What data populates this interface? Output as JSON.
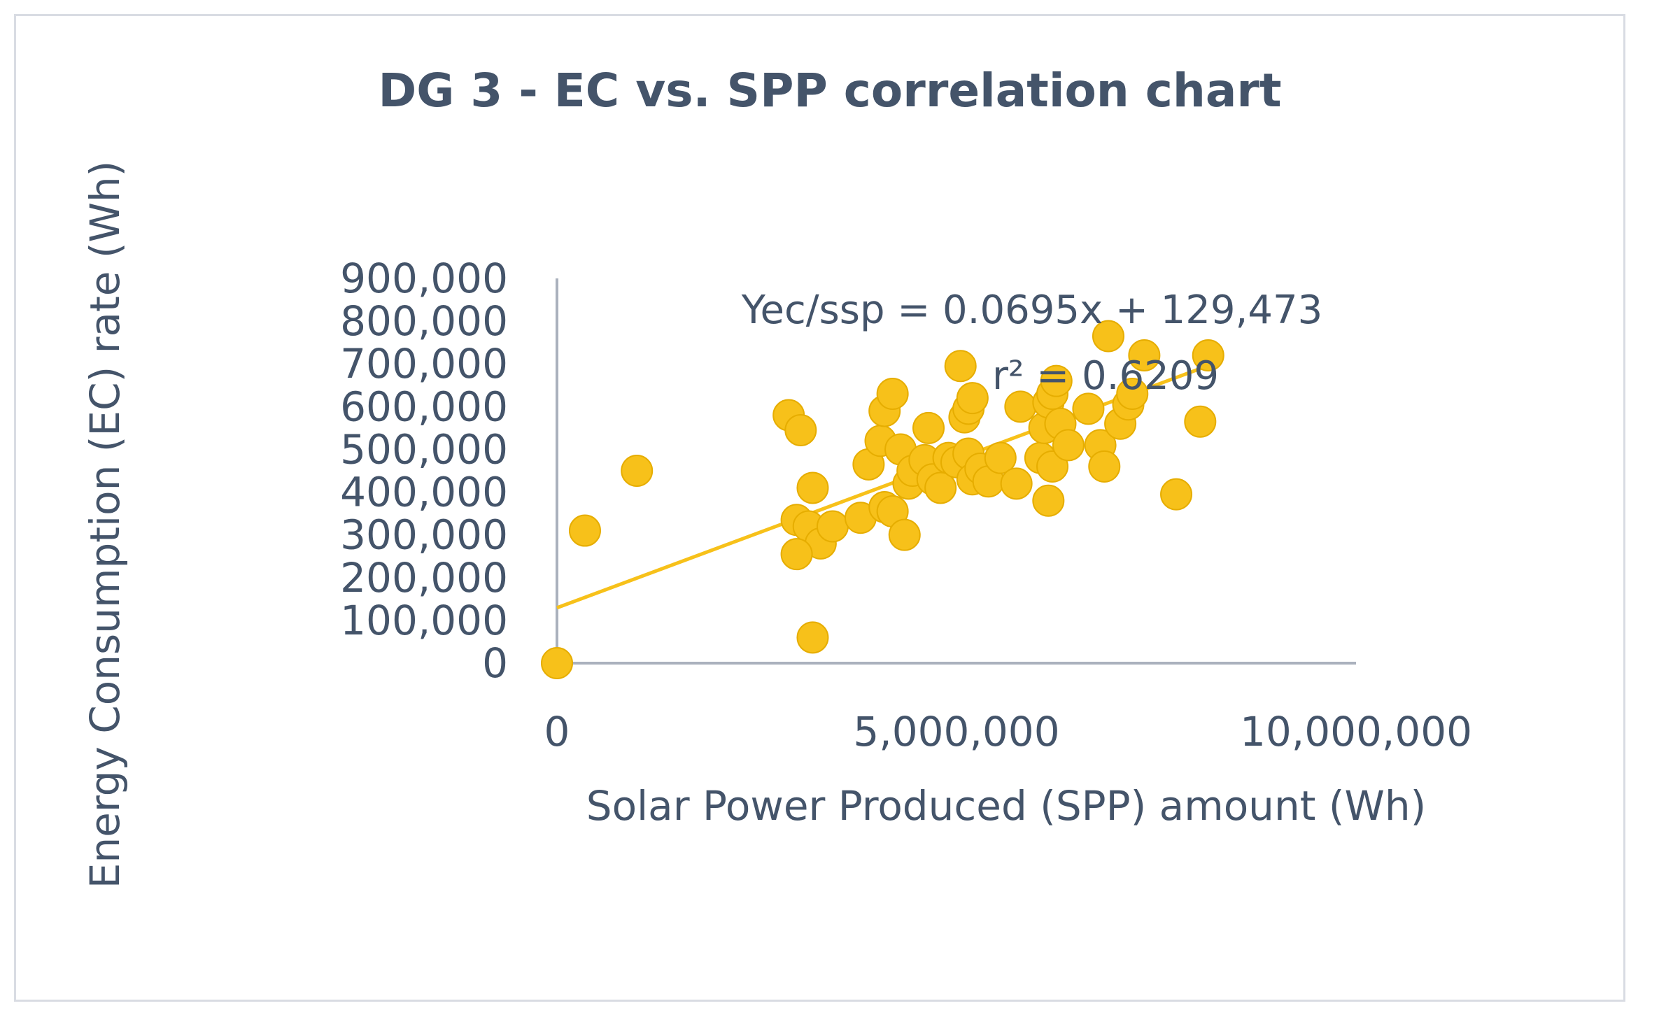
{
  "colors": {
    "marker": "#f7c11a",
    "marker_edge": "#e6ad00",
    "trendline": "#f7c11a",
    "axis": "#aab1bd",
    "text": "#44546a",
    "frame": "#d9dce3"
  },
  "chart_data": {
    "type": "scatter",
    "title": "DG 3 - EC vs. SPP correlation chart",
    "xlabel": "Solar Power Produced (SPP) amount (Wh)",
    "ylabel": "Energy Consumption (EC) rate (Wh)",
    "xlim": [
      0,
      10000000
    ],
    "ylim": [
      0,
      900000
    ],
    "x_ticks": [
      0,
      5000000,
      10000000
    ],
    "x_tick_labels": [
      "0",
      "5,000,000",
      "10,000,000"
    ],
    "y_ticks": [
      0,
      100000,
      200000,
      300000,
      400000,
      500000,
      600000,
      700000,
      800000,
      900000
    ],
    "y_tick_labels": [
      "0",
      "100,000",
      "200,000",
      "300,000",
      "400,000",
      "500,000",
      "600,000",
      "700,000",
      "800,000",
      "900,000"
    ],
    "trendline": {
      "slope": 0.0695,
      "intercept": 129473,
      "x_range": [
        0,
        8100000
      ],
      "equation_label": "Yec/ssp = 0.0695x + 129,473",
      "r2_label": "r² = 0.6209"
    },
    "series": [
      {
        "name": "DG 3",
        "points": [
          [
            0,
            0
          ],
          [
            350000,
            310000
          ],
          [
            1000000,
            450000
          ],
          [
            2900000,
            580000
          ],
          [
            3050000,
            545000
          ],
          [
            3200000,
            410000
          ],
          [
            3000000,
            335000
          ],
          [
            3150000,
            320000
          ],
          [
            3300000,
            280000
          ],
          [
            3000000,
            255000
          ],
          [
            3200000,
            60000
          ],
          [
            3450000,
            320000
          ],
          [
            3800000,
            340000
          ],
          [
            3900000,
            465000
          ],
          [
            4050000,
            520000
          ],
          [
            4100000,
            590000
          ],
          [
            4200000,
            630000
          ],
          [
            4100000,
            365000
          ],
          [
            4200000,
            355000
          ],
          [
            4300000,
            500000
          ],
          [
            4350000,
            300000
          ],
          [
            4400000,
            420000
          ],
          [
            4450000,
            450000
          ],
          [
            4600000,
            475000
          ],
          [
            4650000,
            550000
          ],
          [
            4700000,
            430000
          ],
          [
            4800000,
            410000
          ],
          [
            4900000,
            480000
          ],
          [
            5000000,
            470000
          ],
          [
            5100000,
            575000
          ],
          [
            5150000,
            595000
          ],
          [
            5200000,
            620000
          ],
          [
            5050000,
            695000
          ],
          [
            5150000,
            490000
          ],
          [
            5200000,
            430000
          ],
          [
            5300000,
            455000
          ],
          [
            5400000,
            425000
          ],
          [
            5550000,
            480000
          ],
          [
            5750000,
            420000
          ],
          [
            5800000,
            600000
          ],
          [
            6050000,
            480000
          ],
          [
            6100000,
            550000
          ],
          [
            6150000,
            380000
          ],
          [
            6200000,
            460000
          ],
          [
            6150000,
            610000
          ],
          [
            6200000,
            630000
          ],
          [
            6250000,
            660000
          ],
          [
            6300000,
            560000
          ],
          [
            6400000,
            510000
          ],
          [
            6650000,
            595000
          ],
          [
            6800000,
            510000
          ],
          [
            6850000,
            460000
          ],
          [
            6900000,
            765000
          ],
          [
            7050000,
            560000
          ],
          [
            7150000,
            605000
          ],
          [
            7200000,
            630000
          ],
          [
            7350000,
            720000
          ],
          [
            7750000,
            395000
          ],
          [
            8050000,
            565000
          ],
          [
            8150000,
            720000
          ]
        ]
      }
    ]
  }
}
